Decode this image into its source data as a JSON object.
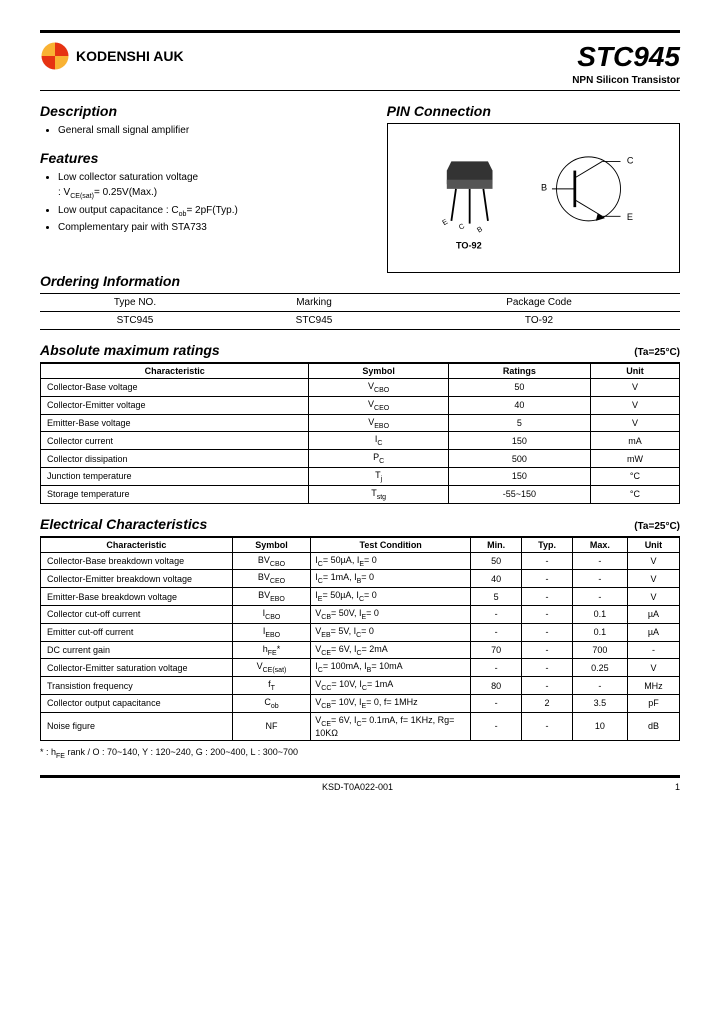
{
  "brand": {
    "name": "KODENSHI AUK"
  },
  "product": {
    "title": "STC945",
    "subtitle": "NPN Silicon Transistor"
  },
  "description": {
    "heading": "Description",
    "items": [
      "General small signal amplifier"
    ]
  },
  "features": {
    "heading": "Features",
    "items": [
      "Low collector saturation voltage : V_CE(sat)= 0.25V(Max.)",
      "Low output capacitance : C_ob= 2pF(Typ.)",
      "Complementary pair with STA733"
    ]
  },
  "pin": {
    "heading": "PIN Connection",
    "package": "TO-92",
    "labels": {
      "e": "E",
      "c": "C",
      "b": "B"
    }
  },
  "ordering": {
    "heading": "Ordering Information",
    "cols": [
      "Type NO.",
      "Marking",
      "Package Code"
    ],
    "row": [
      "STC945",
      "STC945",
      "TO-92"
    ]
  },
  "abs_max": {
    "heading": "Absolute maximum ratings",
    "ta": "(Ta=25°C)",
    "cols": [
      "Characteristic",
      "Symbol",
      "Ratings",
      "Unit"
    ],
    "rows": [
      [
        "Collector-Base voltage",
        "V_CBO",
        "50",
        "V"
      ],
      [
        "Collector-Emitter voltage",
        "V_CEO",
        "40",
        "V"
      ],
      [
        "Emitter-Base voltage",
        "V_EBO",
        "5",
        "V"
      ],
      [
        "Collector current",
        "I_C",
        "150",
        "mA"
      ],
      [
        "Collector dissipation",
        "P_C",
        "500",
        "mW"
      ],
      [
        "Junction temperature",
        "T_j",
        "150",
        "°C"
      ],
      [
        "Storage temperature",
        "T_stg",
        "-55~150",
        "°C"
      ]
    ]
  },
  "elec": {
    "heading": "Electrical Characteristics",
    "ta": "(Ta=25°C)",
    "cols": [
      "Characteristic",
      "Symbol",
      "Test Condition",
      "Min.",
      "Typ.",
      "Max.",
      "Unit"
    ],
    "rows": [
      [
        "Collector-Base breakdown voltage",
        "BV_CBO",
        "I_C= 50µA, I_E= 0",
        "50",
        "-",
        "-",
        "V"
      ],
      [
        "Collector-Emitter breakdown voltage",
        "BV_CEO",
        "I_C= 1mA, I_B= 0",
        "40",
        "-",
        "-",
        "V"
      ],
      [
        "Emitter-Base breakdown voltage",
        "BV_EBO",
        "I_E= 50µA, I_C= 0",
        "5",
        "-",
        "-",
        "V"
      ],
      [
        "Collector cut-off current",
        "I_CBO",
        "V_CB= 50V, I_E= 0",
        "-",
        "-",
        "0.1",
        "µA"
      ],
      [
        "Emitter cut-off current",
        "I_EBO",
        "V_EB= 5V, I_C= 0",
        "-",
        "-",
        "0.1",
        "µA"
      ],
      [
        "DC current gain",
        "h_FE*",
        "V_CE= 6V, I_C= 2mA",
        "70",
        "-",
        "700",
        "-"
      ],
      [
        "Collector-Emitter saturation voltage",
        "V_CE(sat)",
        "I_C= 100mA, I_B= 10mA",
        "-",
        "-",
        "0.25",
        "V"
      ],
      [
        "Transistion frequency",
        "f_T",
        "V_CC= 10V, I_C= 1mA",
        "80",
        "-",
        "-",
        "MHz"
      ],
      [
        "Collector output capacitance",
        "C_ob",
        "V_CB= 10V, I_E= 0, f= 1MHz",
        "-",
        "2",
        "3.5",
        "pF"
      ],
      [
        "Noise figure",
        "NF",
        "V_CE= 6V, I_C= 0.1mA, f= 1KHz, Rg= 10KΩ",
        "-",
        "-",
        "10",
        "dB"
      ]
    ]
  },
  "footnote": "* : h_FE rank / O : 70~140, Y : 120~240, G : 200~400, L : 300~700",
  "footer": {
    "doc": "KSD-T0A022-001",
    "page": "1"
  },
  "colors": {
    "accent1": "#e63312",
    "accent2": "#f9b233",
    "text": "#000000"
  }
}
